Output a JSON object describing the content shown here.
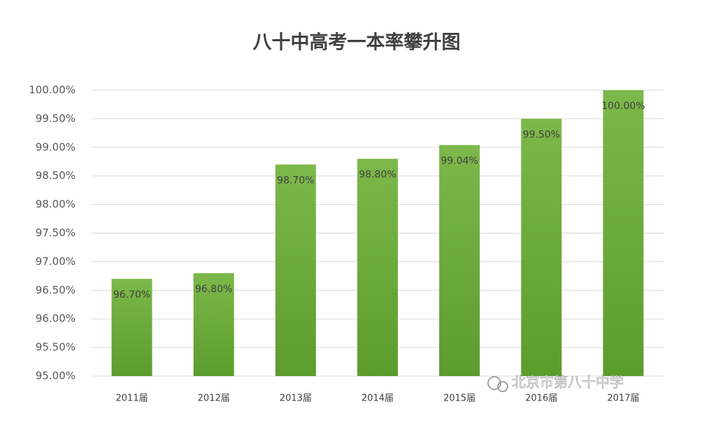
{
  "chart_data": {
    "type": "bar",
    "title": "八十中高考一本率攀升图",
    "categories": [
      "2011届",
      "2012届",
      "2013届",
      "2014届",
      "2015届",
      "2016届",
      "2017届"
    ],
    "values": [
      96.7,
      96.8,
      98.7,
      98.8,
      99.04,
      99.5,
      100
    ],
    "value_labels": [
      "96.70%",
      "96.80%",
      "98.70%",
      "98.80%",
      "99.04%",
      "99.50%",
      "100.00%"
    ],
    "color": "#6aab3a",
    "ylim": [
      95,
      100
    ],
    "yticks": [
      {
        "value": 95,
        "label": "95.00%"
      },
      {
        "value": 95.5,
        "label": "95.50%"
      },
      {
        "value": 96,
        "label": "96.00%"
      },
      {
        "value": 96.5,
        "label": "96.50%"
      },
      {
        "value": 97,
        "label": "97.00%"
      },
      {
        "value": 97.5,
        "label": "97.50%"
      },
      {
        "value": 98,
        "label": "98.00%"
      },
      {
        "value": 98.5,
        "label": "98.50%"
      },
      {
        "value": 99,
        "label": "99.00%"
      },
      {
        "value": 99.5,
        "label": "99.50%"
      },
      {
        "value": 100,
        "label": "100.00%"
      }
    ],
    "grid": true,
    "watermark": "北京市第八十中学"
  }
}
